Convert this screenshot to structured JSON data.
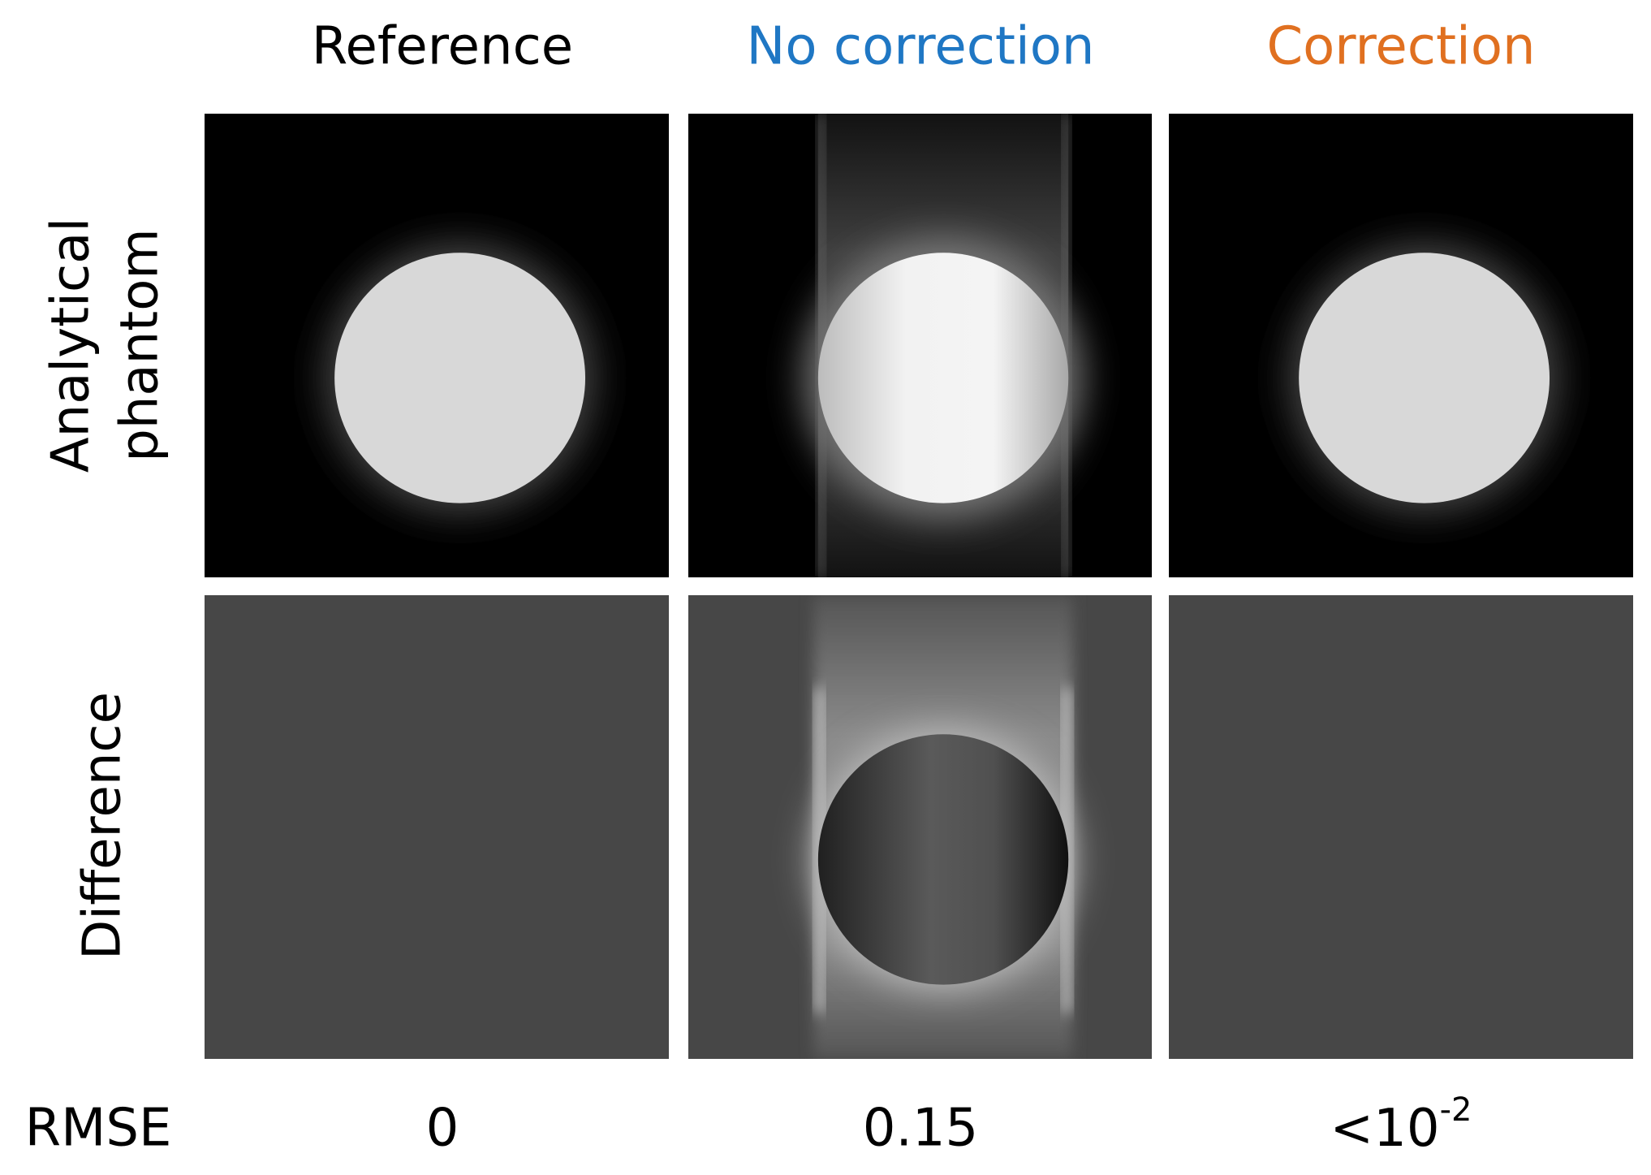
{
  "columns": [
    {
      "title": "Reference",
      "color": "#000000",
      "rmse": "0"
    },
    {
      "title": "No correction",
      "color": "#1f77c4",
      "rmse": "0.15"
    },
    {
      "title": "Correction",
      "color": "#e07020",
      "rmse": {
        "base": "<10",
        "exponent": "-2"
      }
    }
  ],
  "rows": [
    {
      "label": [
        "Analytical",
        "phantom"
      ]
    },
    {
      "label": [
        "Difference"
      ]
    }
  ],
  "rmse_label": "RMSE"
}
